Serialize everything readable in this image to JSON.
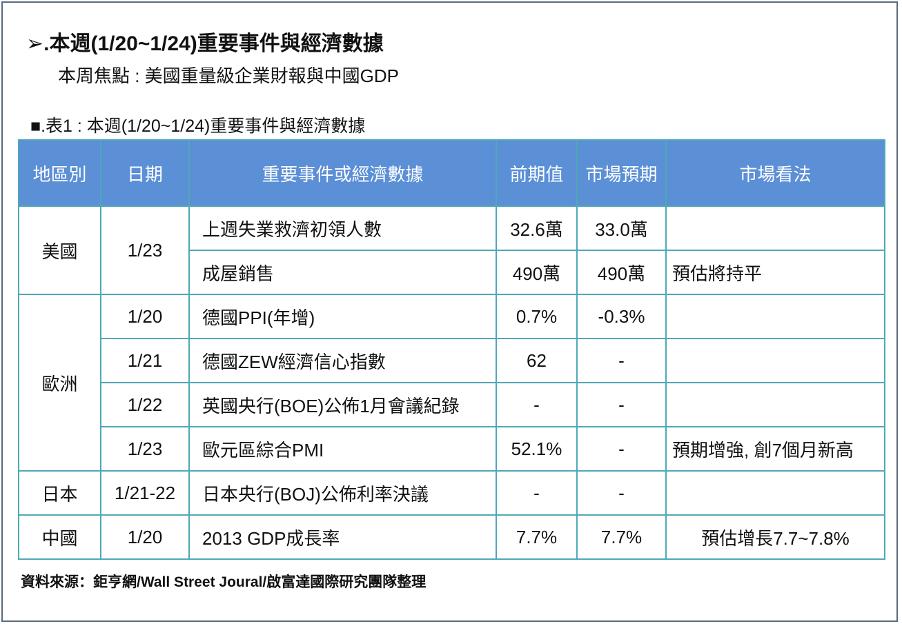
{
  "title": "➢.本週(1/20~1/24)重要事件與經濟數據",
  "subtitle": "本周焦點 : 美國重量級企業財報與中國GDP",
  "table_caption": "■.表1 : 本週(1/20~1/24)重要事件與經濟數據",
  "table": {
    "headers": [
      "地區別",
      "日期",
      "重要事件或經濟數據",
      "前期值",
      "市場預期",
      "市場看法"
    ],
    "regions": {
      "us": "美國",
      "eu": "歐洲",
      "jp": "日本",
      "cn": "中國"
    },
    "rows": [
      {
        "date": "1/23",
        "event": "上週失業救濟初領人數",
        "prev": "32.6萬",
        "expect": "33.0萬",
        "view": ""
      },
      {
        "date": "",
        "event": "成屋銷售",
        "prev": "490萬",
        "expect": "490萬",
        "view": "預估將持平"
      },
      {
        "date": "1/20",
        "event": "德國PPI(年增)",
        "prev": "0.7%",
        "expect": "-0.3%",
        "view": ""
      },
      {
        "date": "1/21",
        "event": "德國ZEW經濟信心指數",
        "prev": "62",
        "expect": "-",
        "view": ""
      },
      {
        "date": "1/22",
        "event": "英國央行(BOE)公佈1月會議紀錄",
        "prev": "-",
        "expect": "-",
        "view": ""
      },
      {
        "date": "1/23",
        "event": "歐元區綜合PMI",
        "prev": "52.1%",
        "expect": "-",
        "view": "預期增強, 創7個月新高"
      },
      {
        "date": "1/21-22",
        "event": "日本央行(BOJ)公佈利率決議",
        "prev": "-",
        "expect": "-",
        "view": ""
      },
      {
        "date": "1/20",
        "event": "2013 GDP成長率",
        "prev": "7.7%",
        "expect": "7.7%",
        "view": "預估增長7.7~7.8%"
      }
    ]
  },
  "source": "資料來源：鉅亨網/Wall Street Joural/啟富達國際研究團隊整理",
  "colors": {
    "header_bg": "#5b8fd6",
    "border": "#4fa8b8",
    "frame": "#5a6a7e"
  }
}
